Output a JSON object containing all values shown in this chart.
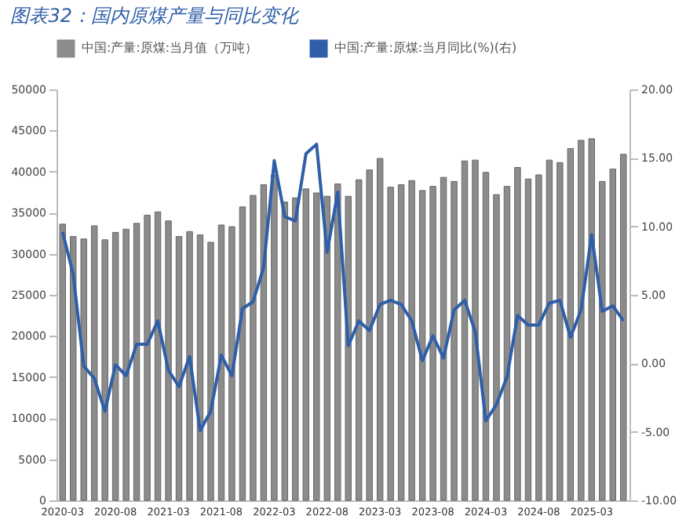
{
  "chart_data": {
    "type": "bar",
    "title": "图表32：国内原煤产量与同比变化",
    "categories": [
      "2020-03",
      null,
      null,
      null,
      null,
      "2020-08",
      null,
      null,
      null,
      null,
      "2021-03",
      null,
      null,
      null,
      null,
      "2021-08",
      null,
      null,
      null,
      null,
      "2022-03",
      null,
      null,
      null,
      null,
      "2022-08",
      null,
      null,
      null,
      null,
      "2023-03",
      null,
      null,
      null,
      null,
      "2023-08",
      null,
      null,
      null,
      null,
      "2024-03",
      null,
      null,
      null,
      null,
      "2024-08",
      null,
      null,
      null,
      null,
      "2025-03",
      null,
      null,
      null
    ],
    "series": [
      {
        "name": "中国:产量:原煤:当月值（万吨）",
        "color": "#8c8c8c",
        "values": [
          33600,
          32100,
          31800,
          33400,
          31700,
          32600,
          33000,
          33700,
          34700,
          35100,
          34000,
          32100,
          32700,
          32300,
          31400,
          33500,
          33300,
          35700,
          37100,
          38400,
          39600,
          36300,
          36800,
          37900,
          37400,
          37000,
          38500,
          37000,
          39000,
          40200,
          41600,
          38100,
          38400,
          38900,
          37700,
          38200,
          39300,
          38800,
          41300,
          41400,
          39900,
          37200,
          38200,
          40500,
          39100,
          39600,
          41400,
          41100,
          42800,
          43800,
          44000,
          38800,
          40300,
          42100
        ]
      },
      {
        "name": "中国:产量:原煤:当月同比(%)(右)",
        "type": "line",
        "axis": "y2",
        "color": "#2e5fa8",
        "values": [
          9.6,
          6.5,
          -0.2,
          -1.1,
          -3.5,
          -0.1,
          -0.9,
          1.4,
          1.4,
          3.1,
          -0.5,
          -1.7,
          0.5,
          -4.9,
          -3.5,
          0.6,
          -0.9,
          4.0,
          4.5,
          7.0,
          14.8,
          10.7,
          10.4,
          15.3,
          16.0,
          8.1,
          12.5,
          1.3,
          3.1,
          2.4,
          4.3,
          4.6,
          4.3,
          3.1,
          0.2,
          2.0,
          0.4,
          3.9,
          4.6,
          2.3,
          -4.2,
          -3.0,
          -1.0,
          3.5,
          2.8,
          2.8,
          4.4,
          4.6,
          1.9,
          3.9,
          9.4,
          3.8,
          4.2,
          3.1
        ]
      }
    ],
    "ylim": [
      0,
      50000
    ],
    "yticks": [
      0,
      5000,
      10000,
      15000,
      20000,
      25000,
      30000,
      35000,
      40000,
      45000,
      50000
    ],
    "y2lim": [
      -10,
      20
    ],
    "y2ticks": [
      {
        "value": -10,
        "label": "-10.00"
      },
      {
        "value": -5,
        "label": "-5.00"
      },
      {
        "value": 0,
        "label": "0.00"
      },
      {
        "value": 5,
        "label": "5.00"
      },
      {
        "value": 10,
        "label": "10.00"
      },
      {
        "value": 15,
        "label": "15.00"
      },
      {
        "value": 20,
        "label": "20.00"
      }
    ],
    "legend": "top",
    "grid": false
  }
}
